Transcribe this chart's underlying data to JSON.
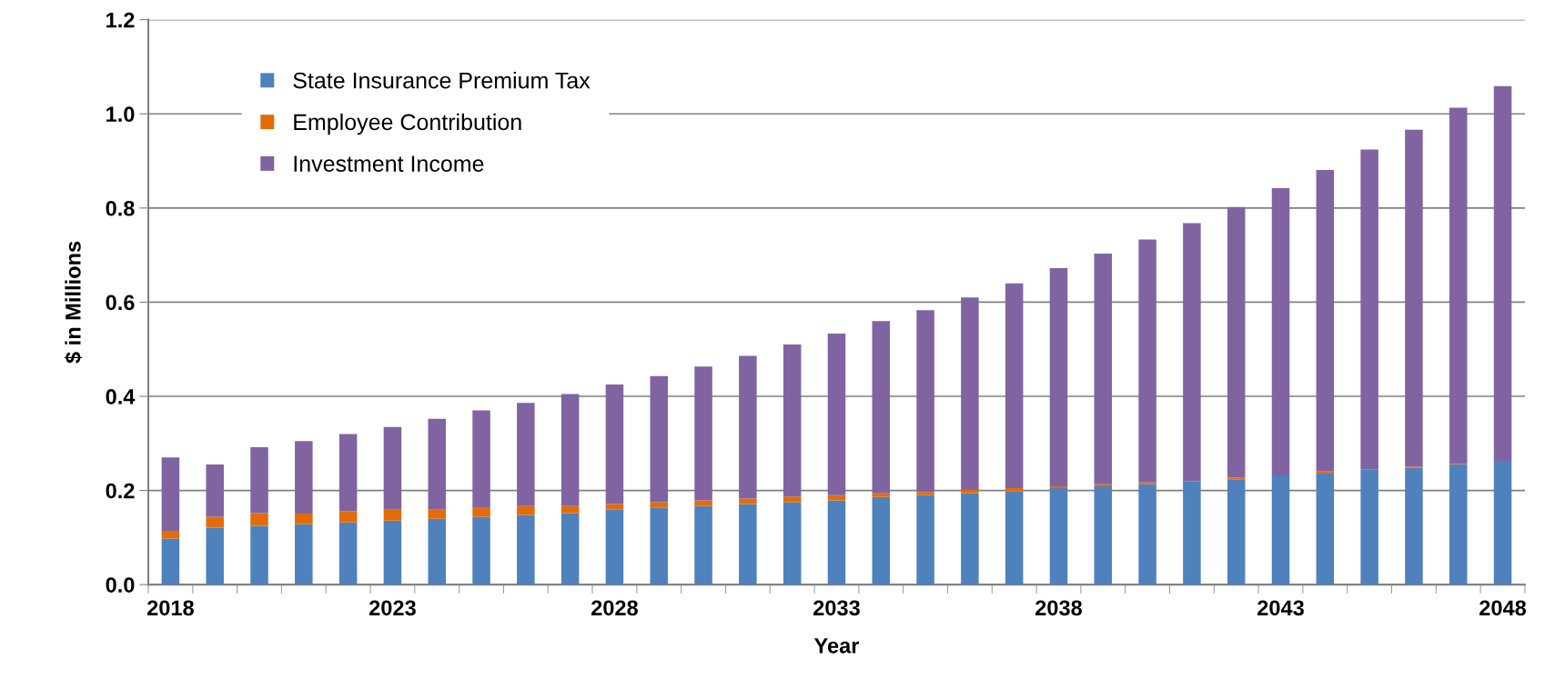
{
  "chart_data": {
    "type": "bar",
    "stacked": true,
    "xlabel": "Year",
    "ylabel": "$ in Millions",
    "categories": [
      "2018",
      null,
      null,
      null,
      null,
      "2023",
      null,
      null,
      null,
      null,
      "2028",
      null,
      null,
      null,
      null,
      "2033",
      null,
      null,
      null,
      null,
      "2038",
      null,
      null,
      null,
      null,
      "2043",
      null,
      null,
      null,
      null,
      "2048"
    ],
    "series": [
      {
        "name": "State Insurance Premium Tax",
        "color": "#4f81bd",
        "values": [
          0.098,
          0.121,
          0.125,
          0.128,
          0.132,
          0.136,
          0.14,
          0.144,
          0.148,
          0.152,
          0.159,
          0.163,
          0.167,
          0.171,
          0.175,
          0.179,
          0.186,
          0.19,
          0.194,
          0.198,
          0.205,
          0.209,
          0.213,
          0.22,
          0.224,
          0.232,
          0.236,
          0.244,
          0.248,
          0.256,
          0.263
        ]
      },
      {
        "name": "Employee Contribution",
        "color": "#e36c09",
        "values": [
          0.016,
          0.023,
          0.027,
          0.023,
          0.024,
          0.023,
          0.019,
          0.019,
          0.019,
          0.015,
          0.012,
          0.012,
          0.012,
          0.012,
          0.012,
          0.011,
          0.008,
          0.007,
          0.007,
          0.007,
          0.004,
          0.004,
          0.004,
          0.0,
          0.003,
          0.0,
          0.004,
          0.0,
          0.003,
          0.001,
          0.0
        ]
      },
      {
        "name": "Investment Income",
        "color": "#8064a2",
        "values": [
          0.156,
          0.111,
          0.14,
          0.154,
          0.164,
          0.176,
          0.193,
          0.207,
          0.219,
          0.238,
          0.254,
          0.268,
          0.284,
          0.303,
          0.323,
          0.343,
          0.366,
          0.386,
          0.409,
          0.435,
          0.463,
          0.49,
          0.516,
          0.548,
          0.575,
          0.61,
          0.641,
          0.68,
          0.715,
          0.756,
          0.796
        ]
      }
    ],
    "ylim": [
      0,
      1.2
    ],
    "yticks": [
      {
        "value": 0,
        "label": "0.0"
      },
      {
        "value": 0.2,
        "label": "0.2"
      },
      {
        "value": 0.4,
        "label": "0.4"
      },
      {
        "value": 0.6,
        "label": "0.6"
      },
      {
        "value": 0.8,
        "label": "0.8"
      },
      {
        "value": 1.0,
        "label": "1.0"
      },
      {
        "value": 1.2,
        "label": "1.2"
      }
    ],
    "grid": "y",
    "legend": "top left"
  }
}
